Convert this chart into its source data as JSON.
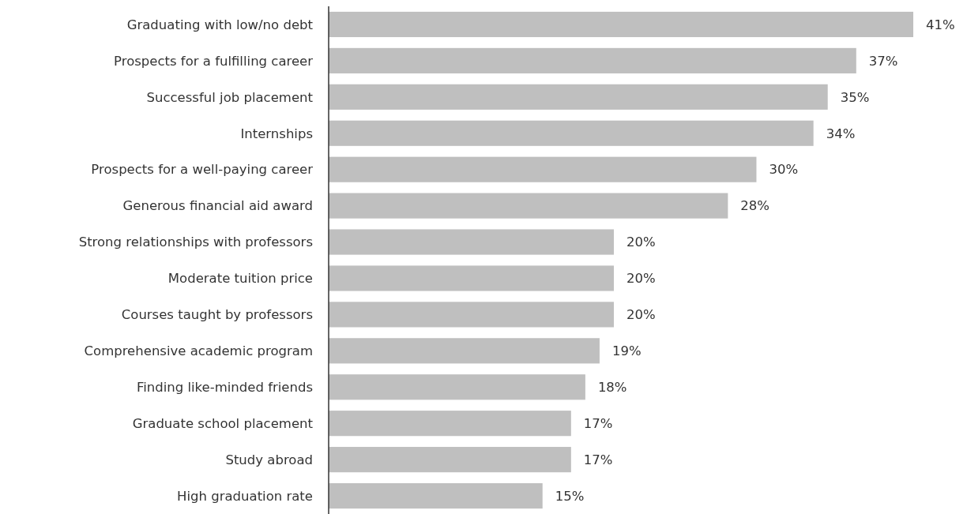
{
  "chart_data": {
    "type": "bar",
    "orientation": "horizontal",
    "categories": [
      "Graduating with low/no debt",
      "Prospects for a fulfilling career",
      "Successful job placement",
      "Internships",
      "Prospects for a well-paying career",
      "Generous financial aid award",
      "Strong relationships with professors",
      "Moderate tuition price",
      "Courses taught by professors",
      "Comprehensive academic program",
      "Finding like-minded friends",
      "Graduate school placement",
      "Study abroad",
      "High graduation rate"
    ],
    "values": [
      41,
      37,
      35,
      34,
      30,
      28,
      20,
      20,
      20,
      19,
      18,
      17,
      17,
      15
    ],
    "value_labels": [
      "41%",
      "37%",
      "35%",
      "34%",
      "30%",
      "28%",
      "20%",
      "20%",
      "20%",
      "19%",
      "18%",
      "17%",
      "17%",
      "15%"
    ],
    "color": "#bfbfbf"
  }
}
